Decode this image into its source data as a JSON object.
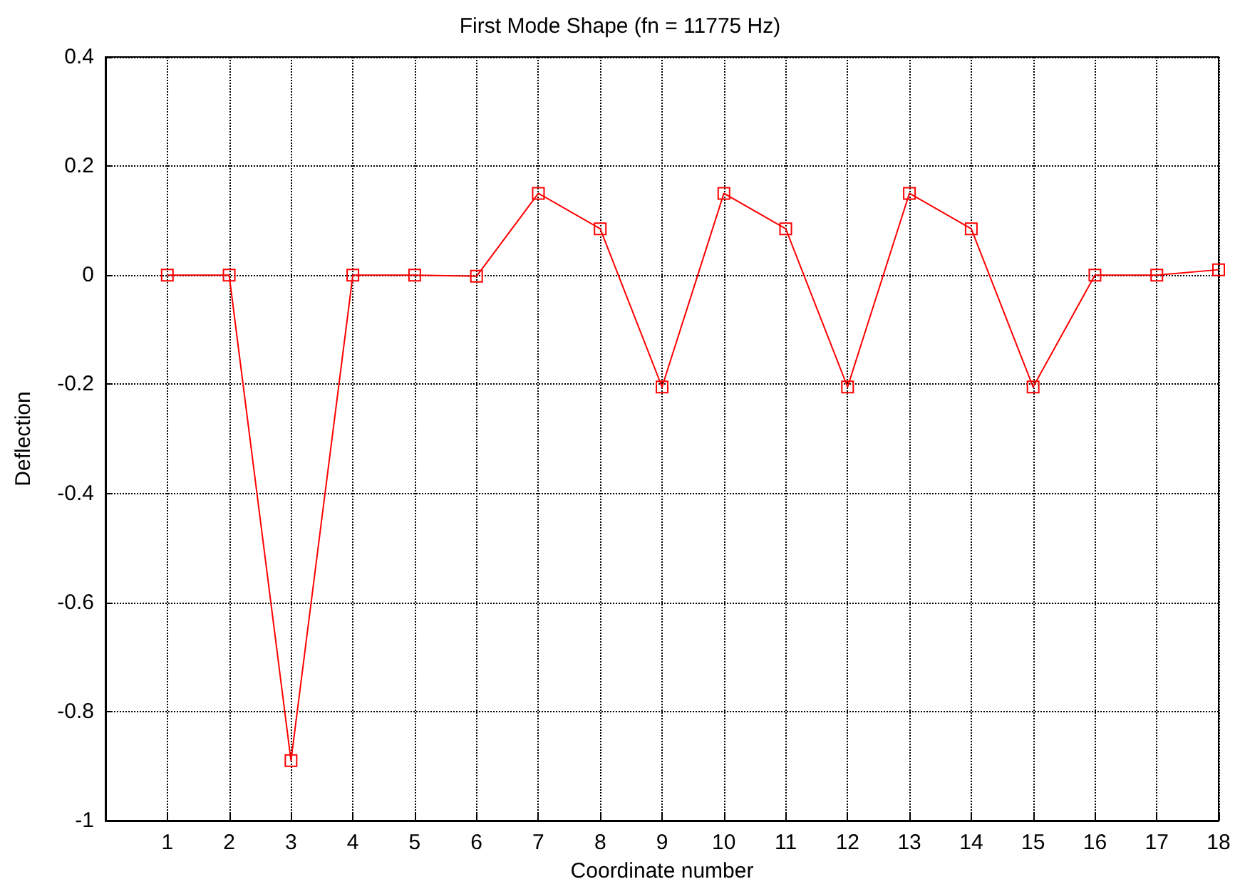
{
  "chart_data": {
    "type": "line",
    "title": "First Mode Shape (fn = 11775 Hz)",
    "xlabel": "Coordinate number",
    "ylabel": "Deflection",
    "x": [
      1,
      2,
      3,
      4,
      5,
      6,
      7,
      8,
      9,
      10,
      11,
      12,
      13,
      14,
      15,
      16,
      17,
      18
    ],
    "series": [
      {
        "color": "#ff0000",
        "values": [
          0,
          0,
          -0.89,
          0,
          0,
          -0.002,
          0.15,
          0.085,
          -0.205,
          0.15,
          0.085,
          -0.205,
          0.15,
          0.085,
          -0.205,
          0,
          0,
          0.01
        ]
      }
    ],
    "xlim": [
      0,
      18
    ],
    "xticks": [
      1,
      2,
      3,
      4,
      5,
      6,
      7,
      8,
      9,
      10,
      11,
      12,
      13,
      14,
      15,
      16,
      17,
      18
    ],
    "ylim": [
      -1,
      0.4
    ],
    "yticks": [
      -1,
      -0.8,
      -0.6,
      -0.4,
      -0.2,
      0,
      0.2,
      0.4
    ],
    "grid": true,
    "marker": "square",
    "line_style": "solid"
  }
}
